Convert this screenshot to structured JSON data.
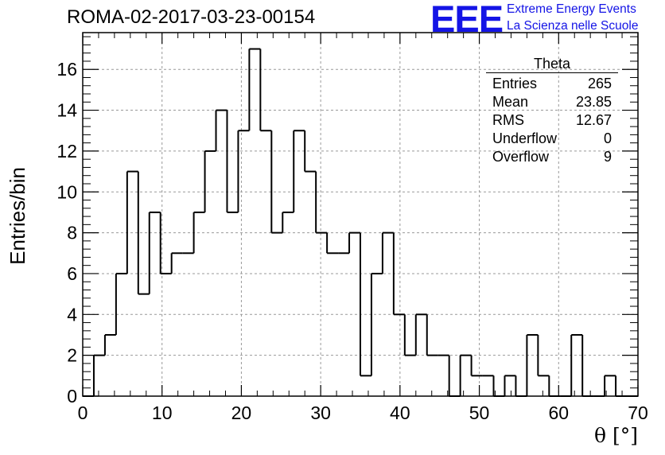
{
  "title": "ROMA-02-2017-03-23-00154",
  "logo": {
    "mark": "EEE",
    "line1": "Extreme Energy Events",
    "line2": "La Scienza nelle Scuole",
    "color": "#1414e6"
  },
  "stats_box": {
    "title": "Theta",
    "rows": [
      {
        "label": "Entries",
        "value": "265"
      },
      {
        "label": "Mean",
        "value": "23.85"
      },
      {
        "label": "RMS",
        "value": "12.67"
      },
      {
        "label": "Underflow",
        "value": "0"
      },
      {
        "label": "Overflow",
        "value": "9"
      }
    ]
  },
  "chart_data": {
    "type": "bar",
    "style": "step-histogram",
    "title": "ROMA-02-2017-03-23-00154",
    "xlabel": "θ [°]",
    "ylabel": "Entries/bin",
    "xlim": [
      0,
      70
    ],
    "ylim": [
      0,
      17.8
    ],
    "bin_width": 1.4,
    "bin_edges_start": 0,
    "values": [
      0,
      2,
      3,
      6,
      11,
      5,
      9,
      6,
      7,
      7,
      9,
      12,
      14,
      9,
      13,
      17,
      13,
      8,
      9,
      13,
      11,
      8,
      7,
      7,
      8,
      1,
      6,
      8,
      4,
      2,
      4,
      2,
      2,
      0,
      2,
      1,
      1,
      0,
      1,
      0,
      3,
      1,
      0,
      0,
      3,
      0,
      0,
      1,
      0,
      0
    ],
    "x_ticks": [
      "0",
      "10",
      "20",
      "30",
      "40",
      "50",
      "60",
      "70"
    ],
    "y_ticks": [
      "0",
      "2",
      "4",
      "6",
      "8",
      "10",
      "12",
      "14",
      "16"
    ],
    "grid": true,
    "colors": {
      "line": "#000000",
      "grid": "#999999",
      "logo": "#1414e6"
    }
  }
}
